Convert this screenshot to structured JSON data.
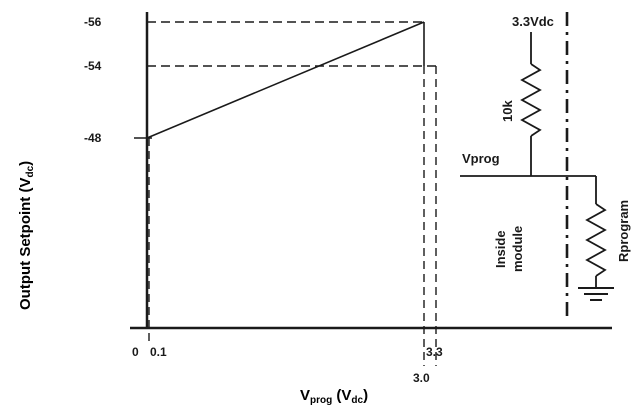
{
  "chart_data": {
    "type": "line",
    "x": [
      0.1,
      3.0
    ],
    "series": [
      {
        "values": [
          -48,
          -56
        ]
      }
    ],
    "y_ticks": [
      "-56",
      "-54",
      "-48"
    ],
    "x_ticks": [
      "0",
      "0.1",
      "3.0",
      "3.3"
    ],
    "xlabel_main": "V",
    "xlabel_sub": "prog",
    "xlabel_units_open": " (V",
    "xlabel_units_sub": "dc",
    "xlabel_units_close": ")",
    "ylabel_main": "Output Setpoint (V",
    "ylabel_sub": "dc",
    "ylabel_close": ")",
    "guides": {
      "x_dashed": [
        0.1,
        3.0,
        3.3
      ],
      "y_dashed": [
        -56,
        -54,
        -48
      ]
    },
    "grid": false,
    "legend": "none"
  },
  "schematic": {
    "supply_label": "3.3Vdc",
    "resistor_label": "10k",
    "node_label": "Vprog",
    "module_label_line1": "Inside",
    "module_label_line2": "module",
    "rprog_label": "Rprogram"
  },
  "colors": {
    "line": "#1a1a1a",
    "text": "#1a1a1a",
    "background": "#ffffff"
  }
}
